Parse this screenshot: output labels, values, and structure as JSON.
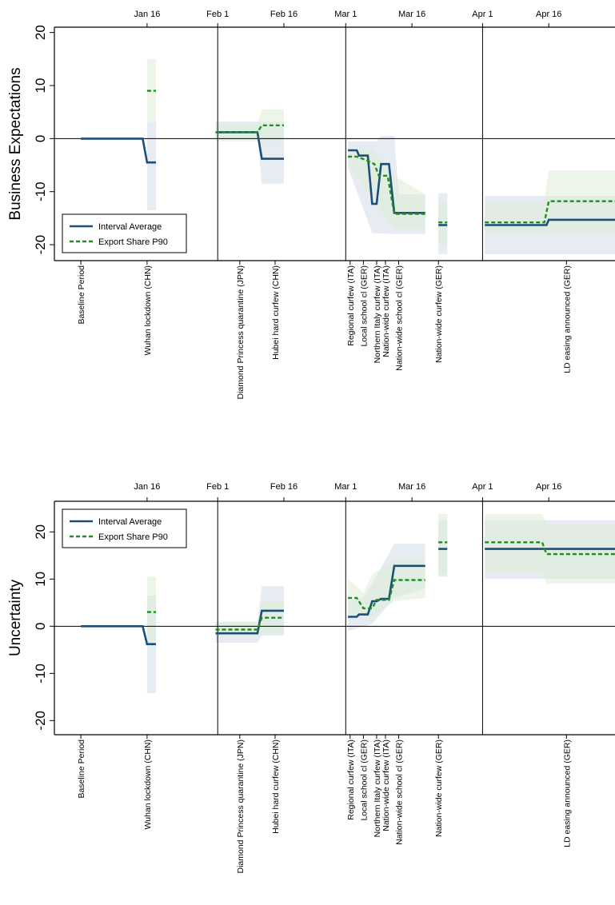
{
  "colors": {
    "interval_average": "#1b4f79",
    "export_share_p90": "#1f8f1f",
    "band_blue": "#dfe6ee",
    "band_green": "#dcecd6"
  },
  "chart_data": [
    {
      "type": "line",
      "title": "",
      "ylabel": "Business Expectations",
      "xlabel": "",
      "ylim": [
        -23,
        21
      ],
      "yticks": [
        "20",
        "10",
        "0",
        "-10",
        "-20"
      ],
      "ytick_values": [
        20,
        10,
        0,
        -10,
        -20
      ],
      "xticks": [
        "Jan 16",
        "Feb 1",
        "Feb 16",
        "Mar 1",
        "Mar 16",
        "Apr 1",
        "Apr 16"
      ],
      "xtick_days": [
        15,
        31,
        46,
        60,
        75,
        91,
        106
      ],
      "xlim": [
        -6,
        121
      ],
      "vlines_days": [
        31,
        60,
        91
      ],
      "zero_line": true,
      "legend": {
        "position": "bottom-left",
        "entries": [
          "Interval Average",
          "Export Share P90"
        ]
      },
      "events": [
        {
          "label": "Baseline Period",
          "day": 0
        },
        {
          "label": "Wuhan lockdown  (CHN)",
          "day": 15
        },
        {
          "label": "Diamond Princess quarantine (JPN)",
          "day": 36
        },
        {
          "label": "Hubei hard curfew (CHN)",
          "day": 44
        },
        {
          "label": "Regional curfew (ITA)",
          "day": 61
        },
        {
          "label": "Local school cl (GER)",
          "day": 64
        },
        {
          "label": "Northern Italy curfew (ITA)",
          "day": 67
        },
        {
          "label": "Nation-wide curfew (ITA)",
          "day": 69
        },
        {
          "label": "Nation-wide school cl (GER)",
          "day": 72
        },
        {
          "label": "Nation-wide curfew (GER)",
          "day": 81
        },
        {
          "label": "LD easing announced (GER)",
          "day": 110
        }
      ],
      "series": [
        {
          "name": "Interval Average",
          "segments": [
            [
              [
                0,
                0
              ],
              [
                14,
                0
              ],
              [
                15,
                -4.5
              ],
              [
                17,
                -4.5
              ]
            ],
            [
              [
                30.5,
                1.2
              ],
              [
                40,
                1.2
              ],
              [
                41,
                -3.8
              ],
              [
                46,
                -3.8
              ]
            ],
            [
              [
                60.5,
                -2.2
              ],
              [
                62.5,
                -2.2
              ],
              [
                63,
                -3.2
              ],
              [
                65,
                -3.2
              ],
              [
                66,
                -12.3
              ],
              [
                67,
                -12.3
              ],
              [
                68,
                -4.8
              ],
              [
                69.8,
                -4.8
              ],
              [
                71,
                -14
              ],
              [
                78,
                -14
              ]
            ],
            [
              [
                81,
                -16.3
              ],
              [
                83,
                -16.3
              ]
            ],
            [
              [
                91.5,
                -16.3
              ],
              [
                105.5,
                -16.3
              ],
              [
                106,
                -15.3
              ],
              [
                121,
                -15.3
              ]
            ]
          ]
        },
        {
          "name": "Export Share P90",
          "segments": [
            [
              [
                15,
                9
              ],
              [
                17,
                9
              ]
            ],
            [
              [
                30.5,
                1.2
              ],
              [
                40,
                1.2
              ],
              [
                41,
                2.5
              ],
              [
                46,
                2.5
              ]
            ],
            [
              [
                60.5,
                -3.4
              ],
              [
                62.5,
                -3.4
              ],
              [
                64.5,
                -4
              ],
              [
                66.5,
                -4.8
              ],
              [
                67.5,
                -7
              ],
              [
                69.5,
                -7
              ],
              [
                71,
                -14.2
              ],
              [
                78,
                -14.2
              ]
            ],
            [
              [
                81,
                -15.8
              ],
              [
                83,
                -15.8
              ]
            ],
            [
              [
                91.5,
                -15.8
              ],
              [
                105,
                -15.8
              ],
              [
                106,
                -11.8
              ],
              [
                121,
                -11.8
              ]
            ]
          ]
        }
      ],
      "bands_interval_average": [
        [
          [
            15,
            3
          ],
          [
            17,
            3
          ],
          [
            17,
            -13.5
          ],
          [
            15,
            -13.5
          ]
        ],
        [
          [
            30.5,
            3.2
          ],
          [
            46,
            3.2
          ],
          [
            46,
            -8.5
          ],
          [
            41,
            -8.5
          ],
          [
            40,
            0
          ],
          [
            30.5,
            0
          ]
        ],
        [
          [
            60.5,
            -0.5
          ],
          [
            67,
            -0.5
          ],
          [
            68,
            0.5
          ],
          [
            71,
            0.5
          ],
          [
            72,
            -10.5
          ],
          [
            78,
            -10.5
          ],
          [
            78,
            -18
          ],
          [
            71,
            -18
          ],
          [
            66,
            -17.8
          ],
          [
            60.5,
            -5.5
          ]
        ],
        [
          [
            81,
            -10.3
          ],
          [
            83,
            -10.3
          ],
          [
            83,
            -21.8
          ],
          [
            81,
            -21.8
          ]
        ],
        [
          [
            91.5,
            -10.8
          ],
          [
            121,
            -10.8
          ],
          [
            121,
            -21.8
          ],
          [
            91.5,
            -21.8
          ]
        ]
      ],
      "bands_export_share_p90": [
        [
          [
            15,
            15
          ],
          [
            17,
            15
          ],
          [
            17,
            3
          ],
          [
            15,
            3
          ]
        ],
        [
          [
            30.5,
            2.7
          ],
          [
            40,
            2.7
          ],
          [
            41,
            5.5
          ],
          [
            46,
            5.5
          ],
          [
            46,
            -0.5
          ],
          [
            30.5,
            -0.5
          ]
        ],
        [
          [
            60.5,
            -2
          ],
          [
            66,
            -2
          ],
          [
            71,
            -7
          ],
          [
            78,
            -10.5
          ],
          [
            78,
            -17
          ],
          [
            71,
            -17
          ],
          [
            60.5,
            -5
          ]
        ],
        [
          [
            81,
            -12
          ],
          [
            83,
            -12
          ],
          [
            83,
            -20
          ],
          [
            81,
            -20
          ]
        ],
        [
          [
            91.5,
            -12
          ],
          [
            105,
            -12
          ],
          [
            106,
            -6
          ],
          [
            121,
            -6
          ],
          [
            121,
            -17.5
          ],
          [
            91.5,
            -17.5
          ]
        ]
      ]
    },
    {
      "type": "line",
      "title": "",
      "ylabel": "Uncertainty",
      "xlabel": "",
      "ylim": [
        -23,
        26.5
      ],
      "yticks": [
        "20",
        "10",
        "0",
        "-10",
        "-20"
      ],
      "ytick_values": [
        20,
        10,
        0,
        -10,
        -20
      ],
      "xticks": [
        "Jan 16",
        "Feb 1",
        "Feb 16",
        "Mar 1",
        "Mar 16",
        "Apr 1",
        "Apr 16"
      ],
      "xtick_days": [
        15,
        31,
        46,
        60,
        75,
        91,
        106
      ],
      "xlim": [
        -6,
        121
      ],
      "vlines_days": [
        31,
        60,
        91
      ],
      "zero_line": true,
      "legend": {
        "position": "top-left",
        "entries": [
          "Interval Average",
          "Export Share P90"
        ]
      },
      "events": [
        {
          "label": "Baseline Period",
          "day": 0
        },
        {
          "label": "Wuhan lockdown  (CHN)",
          "day": 15
        },
        {
          "label": "Diamond Princess quarantine (JPN)",
          "day": 36
        },
        {
          "label": "Hubei hard curfew (CHN)",
          "day": 44
        },
        {
          "label": "Regional curfew (ITA)",
          "day": 61
        },
        {
          "label": "Local school cl (GER)",
          "day": 64
        },
        {
          "label": "Northern Italy curfew (ITA)",
          "day": 67
        },
        {
          "label": "Nation-wide curfew (ITA)",
          "day": 69
        },
        {
          "label": "Nation-wide school cl (GER)",
          "day": 72
        },
        {
          "label": "Nation-wide curfew (GER)",
          "day": 81
        },
        {
          "label": "LD easing announced (GER)",
          "day": 110
        }
      ],
      "series": [
        {
          "name": "Interval Average",
          "segments": [
            [
              [
                0,
                0
              ],
              [
                14,
                0
              ],
              [
                15,
                -3.8
              ],
              [
                17,
                -3.8
              ]
            ],
            [
              [
                30.5,
                -1.5
              ],
              [
                40,
                -1.5
              ],
              [
                41,
                3.3
              ],
              [
                46,
                3.3
              ]
            ],
            [
              [
                60.5,
                2
              ],
              [
                62.5,
                2
              ],
              [
                63,
                2.5
              ],
              [
                65,
                2.5
              ],
              [
                66,
                5.3
              ],
              [
                67,
                5.3
              ],
              [
                68,
                5.8
              ],
              [
                69.8,
                5.8
              ],
              [
                71,
                12.8
              ],
              [
                78,
                12.8
              ]
            ],
            [
              [
                81,
                16.4
              ],
              [
                83,
                16.4
              ]
            ],
            [
              [
                91.5,
                16.4
              ],
              [
                121,
                16.4
              ]
            ]
          ]
        },
        {
          "name": "Export Share P90",
          "segments": [
            [
              [
                15,
                3
              ],
              [
                17,
                3
              ]
            ],
            [
              [
                30.5,
                -0.7
              ],
              [
                40,
                -0.7
              ],
              [
                41,
                1.8
              ],
              [
                46,
                1.8
              ]
            ],
            [
              [
                60.5,
                6
              ],
              [
                62.5,
                6
              ],
              [
                64,
                3.8
              ],
              [
                66,
                3.8
              ],
              [
                67,
                5.6
              ],
              [
                69.8,
                5.6
              ],
              [
                71,
                9.8
              ],
              [
                78,
                9.8
              ]
            ],
            [
              [
                81,
                17.8
              ],
              [
                83,
                17.8
              ]
            ],
            [
              [
                91.5,
                17.8
              ],
              [
                104.5,
                17.8
              ],
              [
                105.5,
                15.3
              ],
              [
                121,
                15.3
              ]
            ]
          ]
        }
      ],
      "bands_interval_average": [
        [
          [
            15,
            6.5
          ],
          [
            17,
            6.5
          ],
          [
            17,
            -14.2
          ],
          [
            15,
            -14.2
          ]
        ],
        [
          [
            30.5,
            0.8
          ],
          [
            40,
            0.8
          ],
          [
            41,
            8.5
          ],
          [
            46,
            8.5
          ],
          [
            46,
            -2
          ],
          [
            41,
            -2
          ],
          [
            40,
            -3.5
          ],
          [
            30.5,
            -3.5
          ]
        ],
        [
          [
            60.5,
            5.5
          ],
          [
            64,
            6
          ],
          [
            66,
            9
          ],
          [
            71,
            17.5
          ],
          [
            78,
            17.5
          ],
          [
            78,
            8
          ],
          [
            71,
            6
          ],
          [
            66,
            0.5
          ],
          [
            60.5,
            -1
          ]
        ],
        [
          [
            81,
            22.5
          ],
          [
            83,
            22.5
          ],
          [
            83,
            10.5
          ],
          [
            81,
            10.5
          ]
        ],
        [
          [
            91.5,
            22.5
          ],
          [
            121,
            22.5
          ],
          [
            121,
            10
          ],
          [
            91.5,
            10
          ]
        ]
      ],
      "bands_export_share_p90": [
        [
          [
            15,
            10.5
          ],
          [
            17,
            10.5
          ],
          [
            17,
            -3.5
          ],
          [
            15,
            -3.5
          ]
        ],
        [
          [
            30.5,
            1
          ],
          [
            40,
            1
          ],
          [
            41,
            5.3
          ],
          [
            46,
            5.3
          ],
          [
            46,
            -1.5
          ],
          [
            30.5,
            -1.5
          ]
        ],
        [
          [
            60.5,
            10
          ],
          [
            64,
            7
          ],
          [
            66,
            11
          ],
          [
            71,
            14
          ],
          [
            78,
            14
          ],
          [
            78,
            6
          ],
          [
            71,
            5.3
          ],
          [
            66,
            2
          ],
          [
            60.5,
            2
          ]
        ],
        [
          [
            81,
            23.8
          ],
          [
            83,
            23.8
          ],
          [
            83,
            11
          ],
          [
            81,
            11
          ]
        ],
        [
          [
            91.5,
            23.8
          ],
          [
            104.5,
            23.8
          ],
          [
            105.5,
            21.5
          ],
          [
            121,
            21.5
          ],
          [
            121,
            9
          ],
          [
            105.5,
            9
          ],
          [
            104.5,
            11.5
          ],
          [
            91.5,
            11.5
          ]
        ]
      ]
    }
  ]
}
